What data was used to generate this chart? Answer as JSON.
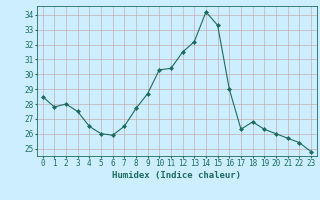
{
  "x": [
    0,
    1,
    2,
    3,
    4,
    5,
    6,
    7,
    8,
    9,
    10,
    11,
    12,
    13,
    14,
    15,
    16,
    17,
    18,
    19,
    20,
    21,
    22,
    23
  ],
  "y": [
    28.5,
    27.8,
    28.0,
    27.5,
    26.5,
    26.0,
    25.9,
    26.5,
    27.7,
    28.7,
    30.3,
    30.4,
    31.5,
    32.2,
    34.2,
    33.3,
    29.0,
    26.3,
    26.8,
    26.3,
    26.0,
    25.7,
    25.4,
    24.8
  ],
  "line_color": "#1e6b5e",
  "marker": "D",
  "marker_size": 2,
  "bg_color": "#cceeff",
  "grid_color": "#c0a0a0",
  "axis_color": "#1e6b5e",
  "xlabel": "Humidex (Indice chaleur)",
  "ylim": [
    24.5,
    34.6
  ],
  "xlim": [
    -0.5,
    23.5
  ],
  "yticks": [
    25,
    26,
    27,
    28,
    29,
    30,
    31,
    32,
    33,
    34
  ],
  "xticks": [
    0,
    1,
    2,
    3,
    4,
    5,
    6,
    7,
    8,
    9,
    10,
    11,
    12,
    13,
    14,
    15,
    16,
    17,
    18,
    19,
    20,
    21,
    22,
    23
  ],
  "font_size_label": 6.5,
  "font_size_tick": 5.5
}
